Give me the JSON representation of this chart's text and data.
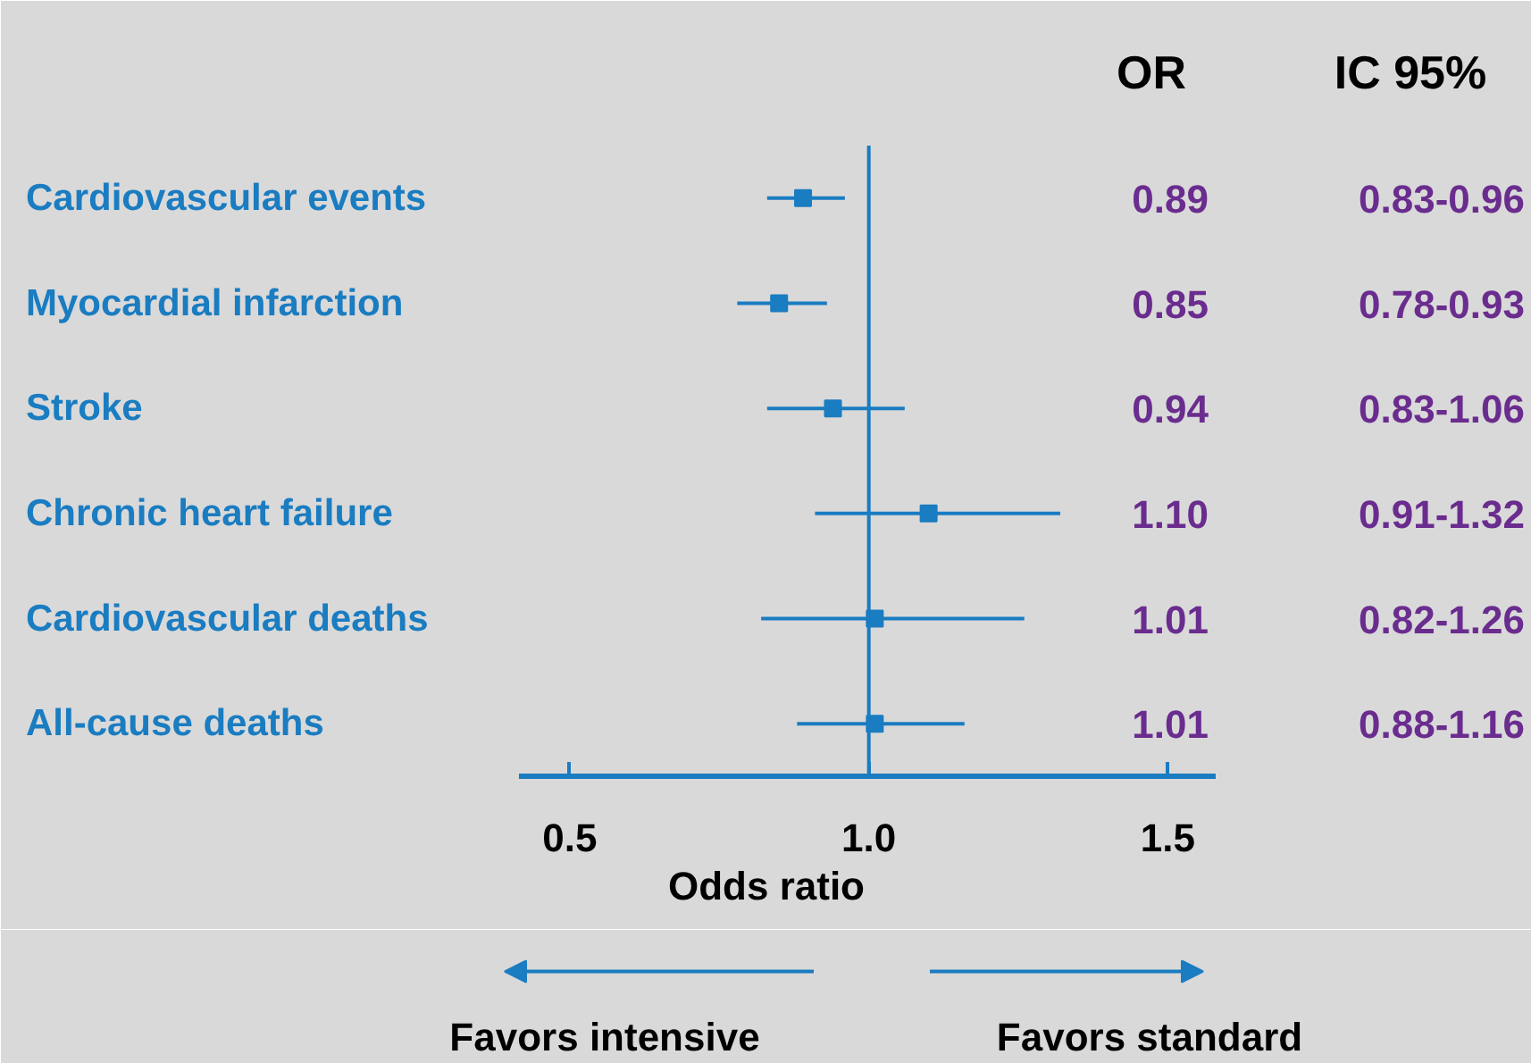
{
  "chart_data": {
    "type": "scatter",
    "orientation": "horizontal",
    "categories": [
      "Cardiovascular events",
      "Myocardial infarction",
      "Stroke",
      "Chronic heart failure",
      "Cardiovascular deaths",
      "All-cause deaths"
    ],
    "values": [
      0.89,
      0.85,
      0.94,
      1.1,
      1.01,
      1.01
    ],
    "errors": [
      [
        0.83,
        0.96
      ],
      [
        0.78,
        0.93
      ],
      [
        0.83,
        1.06
      ],
      [
        0.91,
        1.32
      ],
      [
        0.82,
        1.26
      ],
      [
        0.88,
        1.16
      ]
    ],
    "color": "#1a7cc1",
    "marker": "square",
    "xlim": [
      0.415,
      1.58
    ],
    "xticks": [
      0.5,
      {
        "value": 1.0,
        "label": "1.0"
      },
      1.5
    ],
    "xlabel": "Odds ratio",
    "ref_lines": [
      {
        "axis": "x",
        "value": 1.0,
        "label": null,
        "color": "#1a7cc1"
      }
    ],
    "annotations": [
      "OR",
      "IC 95%",
      "Favors intensive",
      "Favors standard",
      "0.89",
      "0.85",
      "0.94",
      "1.10",
      "1.01",
      "1.01",
      "0.83-0.96",
      "0.78-0.93",
      "0.83-1.06",
      "0.91-1.32",
      "0.82-1.26",
      "0.88-1.16"
    ],
    "grid": false
  }
}
